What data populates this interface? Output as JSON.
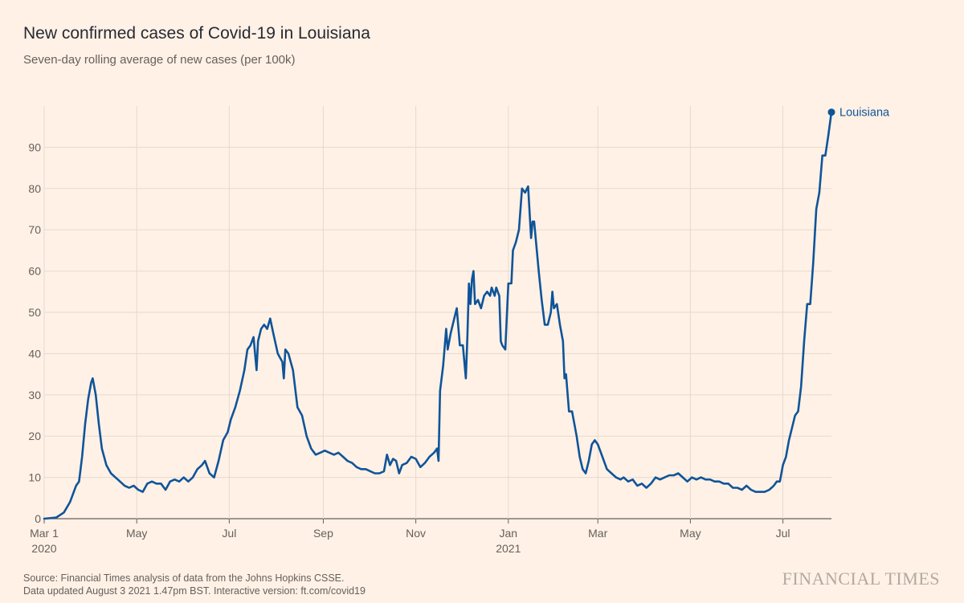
{
  "header": {
    "title": "New confirmed cases of Covid-19 in Louisiana",
    "subtitle": "Seven-day rolling average of new cases (per 100k)"
  },
  "footer": {
    "source_line1": "Source: Financial Times analysis of data from the Johns Hopkins CSSE.",
    "source_line2": "Data updated August 3 2021 1.47pm BST. Interactive version: ft.com/covid19",
    "brand": "FINANCIAL TIMES"
  },
  "colors": {
    "background": "#FFF1E5",
    "line": "#0F5499",
    "grid": "#E6D9CE",
    "axis": "#66605C"
  },
  "chart_data": {
    "type": "line",
    "title": "New confirmed cases of Covid-19 in Louisiana",
    "subtitle": "Seven-day rolling average of new cases (per 100k)",
    "xlabel": "",
    "ylabel": "",
    "ylim": [
      0,
      100
    ],
    "yticks": [
      0,
      10,
      20,
      30,
      40,
      50,
      60,
      70,
      80,
      90
    ],
    "xlim": [
      "2020-03-01",
      "2021-08-02"
    ],
    "xticks": [
      {
        "date": "2020-03-01",
        "label": "Mar 1",
        "sublabel": "2020"
      },
      {
        "date": "2020-05-01",
        "label": "May",
        "sublabel": ""
      },
      {
        "date": "2020-07-01",
        "label": "Jul",
        "sublabel": ""
      },
      {
        "date": "2020-09-01",
        "label": "Sep",
        "sublabel": ""
      },
      {
        "date": "2020-11-01",
        "label": "Nov",
        "sublabel": ""
      },
      {
        "date": "2021-01-01",
        "label": "Jan",
        "sublabel": "2021"
      },
      {
        "date": "2021-03-01",
        "label": "Mar",
        "sublabel": ""
      },
      {
        "date": "2021-05-01",
        "label": "May",
        "sublabel": ""
      },
      {
        "date": "2021-07-01",
        "label": "Jul",
        "sublabel": ""
      }
    ],
    "grid": true,
    "series": [
      {
        "name": "Louisiana",
        "color": "#0F5499",
        "points": [
          [
            "2020-03-01",
            0
          ],
          [
            "2020-03-09",
            0.3
          ],
          [
            "2020-03-14",
            1.5
          ],
          [
            "2020-03-18",
            4
          ],
          [
            "2020-03-22",
            8
          ],
          [
            "2020-03-24",
            9
          ],
          [
            "2020-03-26",
            15
          ],
          [
            "2020-03-28",
            23
          ],
          [
            "2020-03-30",
            29
          ],
          [
            "2020-04-01",
            33
          ],
          [
            "2020-04-02",
            34
          ],
          [
            "2020-04-04",
            30
          ],
          [
            "2020-04-06",
            23
          ],
          [
            "2020-04-08",
            17
          ],
          [
            "2020-04-11",
            13
          ],
          [
            "2020-04-14",
            11
          ],
          [
            "2020-04-17",
            10
          ],
          [
            "2020-04-20",
            9
          ],
          [
            "2020-04-23",
            8
          ],
          [
            "2020-04-26",
            7.5
          ],
          [
            "2020-04-29",
            8
          ],
          [
            "2020-05-02",
            7
          ],
          [
            "2020-05-05",
            6.5
          ],
          [
            "2020-05-08",
            8.5
          ],
          [
            "2020-05-11",
            9
          ],
          [
            "2020-05-14",
            8.5
          ],
          [
            "2020-05-17",
            8.5
          ],
          [
            "2020-05-20",
            7
          ],
          [
            "2020-05-23",
            9
          ],
          [
            "2020-05-26",
            9.5
          ],
          [
            "2020-05-29",
            9
          ],
          [
            "2020-06-01",
            10
          ],
          [
            "2020-06-04",
            9
          ],
          [
            "2020-06-07",
            10
          ],
          [
            "2020-06-10",
            12
          ],
          [
            "2020-06-13",
            13
          ],
          [
            "2020-06-15",
            14
          ],
          [
            "2020-06-18",
            11
          ],
          [
            "2020-06-21",
            10
          ],
          [
            "2020-06-24",
            14
          ],
          [
            "2020-06-27",
            19
          ],
          [
            "2020-06-30",
            21
          ],
          [
            "2020-07-02",
            24
          ],
          [
            "2020-07-05",
            27
          ],
          [
            "2020-07-08",
            31
          ],
          [
            "2020-07-11",
            36
          ],
          [
            "2020-07-13",
            41
          ],
          [
            "2020-07-15",
            42
          ],
          [
            "2020-07-17",
            44
          ],
          [
            "2020-07-19",
            36
          ],
          [
            "2020-07-20",
            43
          ],
          [
            "2020-07-22",
            46
          ],
          [
            "2020-07-24",
            47
          ],
          [
            "2020-07-26",
            46
          ],
          [
            "2020-07-28",
            48.5
          ],
          [
            "2020-07-30",
            45
          ],
          [
            "2020-08-02",
            40
          ],
          [
            "2020-08-05",
            38
          ],
          [
            "2020-08-06",
            34
          ],
          [
            "2020-08-07",
            41
          ],
          [
            "2020-08-09",
            40
          ],
          [
            "2020-08-12",
            36
          ],
          [
            "2020-08-15",
            27
          ],
          [
            "2020-08-18",
            25
          ],
          [
            "2020-08-21",
            20
          ],
          [
            "2020-08-24",
            17
          ],
          [
            "2020-08-27",
            15.5
          ],
          [
            "2020-08-30",
            16
          ],
          [
            "2020-09-02",
            16.5
          ],
          [
            "2020-09-05",
            16
          ],
          [
            "2020-09-08",
            15.5
          ],
          [
            "2020-09-11",
            16
          ],
          [
            "2020-09-14",
            15
          ],
          [
            "2020-09-17",
            14
          ],
          [
            "2020-09-20",
            13.5
          ],
          [
            "2020-09-23",
            12.5
          ],
          [
            "2020-09-26",
            12
          ],
          [
            "2020-09-29",
            12
          ],
          [
            "2020-10-02",
            11.5
          ],
          [
            "2020-10-05",
            11
          ],
          [
            "2020-10-08",
            11
          ],
          [
            "2020-10-11",
            11.5
          ],
          [
            "2020-10-13",
            15.5
          ],
          [
            "2020-10-15",
            13
          ],
          [
            "2020-10-17",
            14.5
          ],
          [
            "2020-10-19",
            14
          ],
          [
            "2020-10-21",
            11
          ],
          [
            "2020-10-23",
            13
          ],
          [
            "2020-10-26",
            13.5
          ],
          [
            "2020-10-29",
            15
          ],
          [
            "2020-11-01",
            14.5
          ],
          [
            "2020-11-04",
            12.5
          ],
          [
            "2020-11-07",
            13.5
          ],
          [
            "2020-11-10",
            15
          ],
          [
            "2020-11-13",
            16
          ],
          [
            "2020-11-15",
            17
          ],
          [
            "2020-11-16",
            14
          ],
          [
            "2020-11-17",
            31
          ],
          [
            "2020-11-19",
            37
          ],
          [
            "2020-11-21",
            46
          ],
          [
            "2020-11-22",
            41
          ],
          [
            "2020-11-24",
            45
          ],
          [
            "2020-11-26",
            48
          ],
          [
            "2020-11-28",
            51
          ],
          [
            "2020-11-30",
            42
          ],
          [
            "2020-12-02",
            42
          ],
          [
            "2020-12-04",
            34
          ],
          [
            "2020-12-05",
            44
          ],
          [
            "2020-12-06",
            57
          ],
          [
            "2020-12-07",
            52
          ],
          [
            "2020-12-08",
            58
          ],
          [
            "2020-12-09",
            60
          ],
          [
            "2020-12-10",
            52
          ],
          [
            "2020-12-12",
            53
          ],
          [
            "2020-12-14",
            51
          ],
          [
            "2020-12-16",
            54
          ],
          [
            "2020-12-18",
            55
          ],
          [
            "2020-12-20",
            54
          ],
          [
            "2020-12-21",
            56
          ],
          [
            "2020-12-23",
            54
          ],
          [
            "2020-12-24",
            56
          ],
          [
            "2020-12-26",
            54
          ],
          [
            "2020-12-27",
            43
          ],
          [
            "2020-12-28",
            42
          ],
          [
            "2020-12-30",
            41
          ],
          [
            "2021-01-01",
            57
          ],
          [
            "2021-01-03",
            57
          ],
          [
            "2021-01-04",
            65
          ],
          [
            "2021-01-06",
            67
          ],
          [
            "2021-01-08",
            70
          ],
          [
            "2021-01-10",
            80
          ],
          [
            "2021-01-12",
            79
          ],
          [
            "2021-01-14",
            80.5
          ],
          [
            "2021-01-16",
            68
          ],
          [
            "2021-01-17",
            72
          ],
          [
            "2021-01-18",
            72
          ],
          [
            "2021-01-21",
            60
          ],
          [
            "2021-01-23",
            53
          ],
          [
            "2021-01-25",
            47
          ],
          [
            "2021-01-27",
            47
          ],
          [
            "2021-01-29",
            50
          ],
          [
            "2021-01-30",
            55
          ],
          [
            "2021-01-31",
            51
          ],
          [
            "2021-02-02",
            52
          ],
          [
            "2021-02-04",
            47
          ],
          [
            "2021-02-06",
            43
          ],
          [
            "2021-02-07",
            34
          ],
          [
            "2021-02-08",
            35
          ],
          [
            "2021-02-10",
            26
          ],
          [
            "2021-02-12",
            26
          ],
          [
            "2021-02-15",
            20
          ],
          [
            "2021-02-17",
            15
          ],
          [
            "2021-02-19",
            12
          ],
          [
            "2021-02-21",
            11
          ],
          [
            "2021-02-23",
            14
          ],
          [
            "2021-02-25",
            18
          ],
          [
            "2021-02-27",
            19
          ],
          [
            "2021-03-01",
            18
          ],
          [
            "2021-03-04",
            15
          ],
          [
            "2021-03-07",
            12
          ],
          [
            "2021-03-10",
            11
          ],
          [
            "2021-03-13",
            10
          ],
          [
            "2021-03-16",
            9.5
          ],
          [
            "2021-03-18",
            10
          ],
          [
            "2021-03-21",
            9
          ],
          [
            "2021-03-24",
            9.5
          ],
          [
            "2021-03-27",
            8
          ],
          [
            "2021-03-30",
            8.5
          ],
          [
            "2021-04-02",
            7.5
          ],
          [
            "2021-04-05",
            8.5
          ],
          [
            "2021-04-08",
            10
          ],
          [
            "2021-04-11",
            9.5
          ],
          [
            "2021-04-14",
            10
          ],
          [
            "2021-04-17",
            10.5
          ],
          [
            "2021-04-20",
            10.5
          ],
          [
            "2021-04-23",
            11
          ],
          [
            "2021-04-26",
            10
          ],
          [
            "2021-04-29",
            9
          ],
          [
            "2021-05-02",
            10
          ],
          [
            "2021-05-05",
            9.5
          ],
          [
            "2021-05-08",
            10
          ],
          [
            "2021-05-11",
            9.5
          ],
          [
            "2021-05-14",
            9.5
          ],
          [
            "2021-05-17",
            9
          ],
          [
            "2021-05-20",
            9
          ],
          [
            "2021-05-23",
            8.5
          ],
          [
            "2021-05-26",
            8.5
          ],
          [
            "2021-05-29",
            7.5
          ],
          [
            "2021-06-01",
            7.5
          ],
          [
            "2021-06-04",
            7
          ],
          [
            "2021-06-07",
            8
          ],
          [
            "2021-06-10",
            7
          ],
          [
            "2021-06-13",
            6.5
          ],
          [
            "2021-06-16",
            6.5
          ],
          [
            "2021-06-19",
            6.5
          ],
          [
            "2021-06-22",
            7
          ],
          [
            "2021-06-25",
            8
          ],
          [
            "2021-06-27",
            9
          ],
          [
            "2021-06-29",
            9
          ],
          [
            "2021-07-01",
            13
          ],
          [
            "2021-07-03",
            15
          ],
          [
            "2021-07-05",
            19
          ],
          [
            "2021-07-07",
            22
          ],
          [
            "2021-07-09",
            25
          ],
          [
            "2021-07-11",
            26
          ],
          [
            "2021-07-13",
            32
          ],
          [
            "2021-07-15",
            43
          ],
          [
            "2021-07-17",
            52
          ],
          [
            "2021-07-19",
            52
          ],
          [
            "2021-07-21",
            62
          ],
          [
            "2021-07-23",
            75
          ],
          [
            "2021-07-25",
            79
          ],
          [
            "2021-07-27",
            88
          ],
          [
            "2021-07-29",
            88
          ],
          [
            "2021-07-31",
            93
          ],
          [
            "2021-08-02",
            98.5
          ]
        ]
      }
    ]
  }
}
